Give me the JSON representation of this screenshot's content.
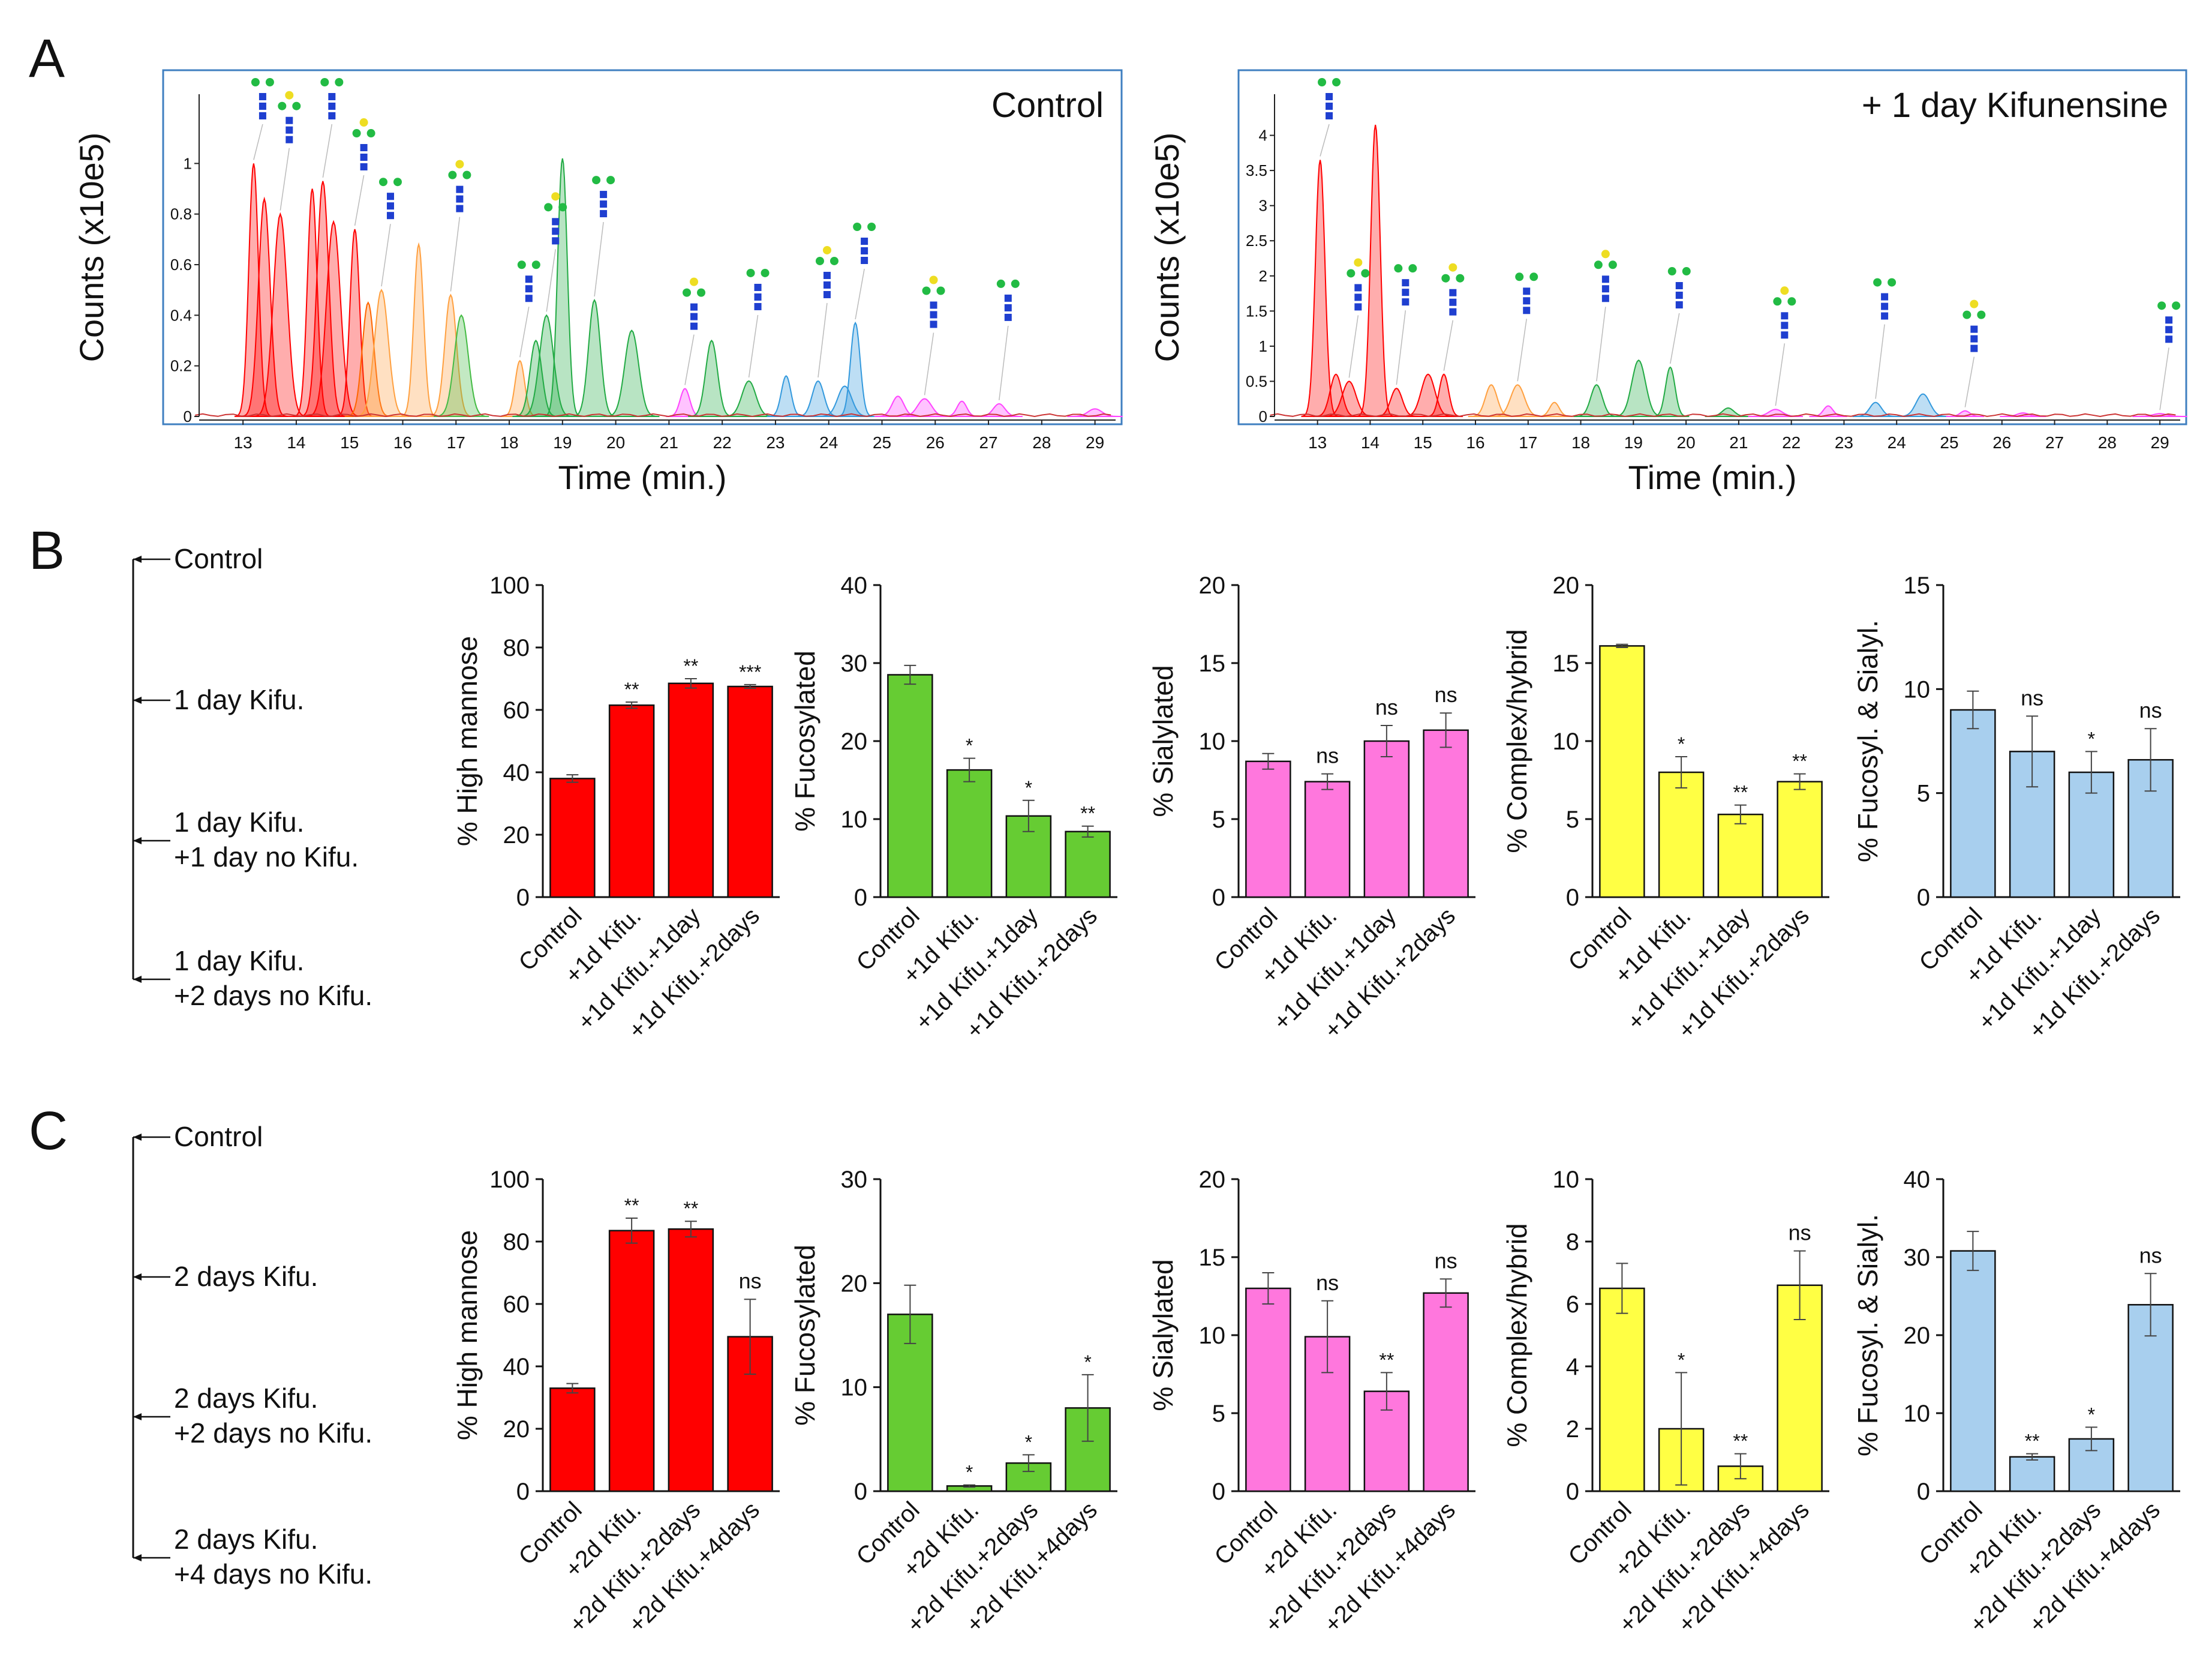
{
  "panel_labels": [
    "A",
    "B",
    "C"
  ],
  "colors": {
    "high_mannose": "#ff0000",
    "fucosylated": "#66cc33",
    "sialylated": "#ff77dd",
    "complex_hybrid": "#ffff44",
    "fucosyl_sialyl": "#a8cfee",
    "chrom_border": "#3f7fc0"
  },
  "timelines": [
    {
      "labels": [
        "Control",
        "1 day Kifu.",
        "1 day Kifu.\n+1 day no Kifu.",
        "1 day Kifu.\n+2 days no Kifu."
      ]
    },
    {
      "labels": [
        "Control",
        "2 days Kifu.",
        "2 days Kifu.\n+2 days no Kifu.",
        "2 days Kifu.\n+4 days no Kifu."
      ]
    }
  ],
  "chart_data": [
    {
      "type": "area",
      "panel": "A",
      "title": "Control",
      "xlabel": "Time (min.)",
      "ylabel": "Counts (x10e5)",
      "xlim": [
        11.5,
        29.5
      ],
      "ylim": [
        0,
        1.25
      ],
      "xticks": [
        13,
        14,
        15,
        16,
        17,
        18,
        19,
        20,
        21,
        22,
        23,
        24,
        25,
        26,
        27,
        28,
        29
      ],
      "yticks": [
        0,
        0.2,
        0.4,
        0.6,
        0.8,
        1
      ],
      "peaks": [
        {
          "x": 13.2,
          "y": 1.0,
          "color": "#ff0000"
        },
        {
          "x": 13.4,
          "y": 0.86,
          "color": "#ff0000"
        },
        {
          "x": 13.7,
          "y": 0.8,
          "color": "#ff0000"
        },
        {
          "x": 14.3,
          "y": 0.9,
          "color": "#ff0000"
        },
        {
          "x": 14.5,
          "y": 0.93,
          "color": "#ff0000"
        },
        {
          "x": 14.7,
          "y": 0.77,
          "color": "#ff0000"
        },
        {
          "x": 15.1,
          "y": 0.74,
          "color": "#ff0000"
        },
        {
          "x": 15.35,
          "y": 0.45,
          "color": "#ff6600"
        },
        {
          "x": 15.6,
          "y": 0.5,
          "color": "#ffa040"
        },
        {
          "x": 16.3,
          "y": 0.68,
          "color": "#ffa040"
        },
        {
          "x": 16.9,
          "y": 0.48,
          "color": "#ffa040"
        },
        {
          "x": 17.1,
          "y": 0.4,
          "color": "#44bb44"
        },
        {
          "x": 18.2,
          "y": 0.22,
          "color": "#ffa040"
        },
        {
          "x": 18.5,
          "y": 0.3,
          "color": "#22aa44"
        },
        {
          "x": 18.7,
          "y": 0.4,
          "color": "#22aa44"
        },
        {
          "x": 19.0,
          "y": 1.02,
          "color": "#22aa44"
        },
        {
          "x": 19.6,
          "y": 0.46,
          "color": "#22aa44"
        },
        {
          "x": 20.3,
          "y": 0.34,
          "color": "#22aa44"
        },
        {
          "x": 21.3,
          "y": 0.11,
          "color": "#ff44ff"
        },
        {
          "x": 21.8,
          "y": 0.3,
          "color": "#22aa44"
        },
        {
          "x": 22.5,
          "y": 0.14,
          "color": "#22aa44"
        },
        {
          "x": 23.2,
          "y": 0.16,
          "color": "#3399dd"
        },
        {
          "x": 23.8,
          "y": 0.14,
          "color": "#3399dd"
        },
        {
          "x": 24.3,
          "y": 0.12,
          "color": "#3399dd"
        },
        {
          "x": 24.5,
          "y": 0.37,
          "color": "#3399dd"
        },
        {
          "x": 25.3,
          "y": 0.08,
          "color": "#ff44ff"
        },
        {
          "x": 25.8,
          "y": 0.07,
          "color": "#ff44ff"
        },
        {
          "x": 26.5,
          "y": 0.06,
          "color": "#ff44ff"
        },
        {
          "x": 27.2,
          "y": 0.05,
          "color": "#ff44ff"
        },
        {
          "x": 29.0,
          "y": 0.03,
          "color": "#ff44ff"
        }
      ]
    },
    {
      "type": "area",
      "panel": "A",
      "title": "+ 1 day Kifunensine",
      "xlabel": "Time (min.)",
      "ylabel": "Counts (x10e5)",
      "xlim": [
        11.5,
        29.5
      ],
      "ylim": [
        0,
        4.5
      ],
      "xticks": [
        13,
        14,
        15,
        16,
        17,
        18,
        19,
        20,
        21,
        22,
        23,
        24,
        25,
        26,
        27,
        28,
        29
      ],
      "yticks": [
        0,
        0.5,
        1,
        1.5,
        2,
        2.5,
        3,
        3.5,
        4
      ],
      "peaks": [
        {
          "x": 13.05,
          "y": 3.65,
          "color": "#ff0000"
        },
        {
          "x": 13.35,
          "y": 0.6,
          "color": "#ff0000"
        },
        {
          "x": 13.6,
          "y": 0.5,
          "color": "#ff0000"
        },
        {
          "x": 14.1,
          "y": 4.15,
          "color": "#ff0000"
        },
        {
          "x": 14.5,
          "y": 0.4,
          "color": "#ff0000"
        },
        {
          "x": 15.1,
          "y": 0.6,
          "color": "#ff0000"
        },
        {
          "x": 15.4,
          "y": 0.6,
          "color": "#ff0000"
        },
        {
          "x": 16.3,
          "y": 0.45,
          "color": "#ffa040"
        },
        {
          "x": 16.8,
          "y": 0.45,
          "color": "#ffa040"
        },
        {
          "x": 17.5,
          "y": 0.2,
          "color": "#ffa040"
        },
        {
          "x": 18.3,
          "y": 0.45,
          "color": "#22aa44"
        },
        {
          "x": 19.1,
          "y": 0.8,
          "color": "#22aa44"
        },
        {
          "x": 19.7,
          "y": 0.7,
          "color": "#22aa44"
        },
        {
          "x": 20.8,
          "y": 0.12,
          "color": "#22aa44"
        },
        {
          "x": 21.7,
          "y": 0.1,
          "color": "#ff44ff"
        },
        {
          "x": 22.7,
          "y": 0.15,
          "color": "#ff44ff"
        },
        {
          "x": 23.6,
          "y": 0.2,
          "color": "#3399dd"
        },
        {
          "x": 24.5,
          "y": 0.32,
          "color": "#3399dd"
        },
        {
          "x": 25.3,
          "y": 0.08,
          "color": "#ff44ff"
        },
        {
          "x": 26.4,
          "y": 0.05,
          "color": "#ff44ff"
        },
        {
          "x": 29.0,
          "y": 0.04,
          "color": "#ff44ff"
        }
      ]
    },
    {
      "type": "bar",
      "panel": "B",
      "ylabel": "% High mannose",
      "ylim": [
        0,
        100
      ],
      "yticks": [
        0,
        20,
        40,
        60,
        80,
        100
      ],
      "color": "#ff0000",
      "categories": [
        "Control",
        "+1d Kifu.",
        "+1d Kifu.+1day",
        "+1d Kifu.+2days"
      ],
      "values": [
        38,
        61.5,
        68.5,
        67.5
      ],
      "errors": [
        1.2,
        1.0,
        1.5,
        0.6
      ],
      "sig": [
        "",
        "**",
        "**",
        "***"
      ]
    },
    {
      "type": "bar",
      "panel": "B",
      "ylabel": "% Fucosylated",
      "ylim": [
        0,
        40
      ],
      "yticks": [
        0,
        10,
        20,
        30,
        40
      ],
      "color": "#66cc33",
      "categories": [
        "Control",
        "+1d Kifu.",
        "+1d Kifu.+1day",
        "+1d Kifu.+2days"
      ],
      "values": [
        28.5,
        16.3,
        10.4,
        8.4
      ],
      "errors": [
        1.2,
        1.5,
        2.0,
        0.7
      ],
      "sig": [
        "",
        "*",
        "*",
        "**"
      ]
    },
    {
      "type": "bar",
      "panel": "B",
      "ylabel": "% Sialylated",
      "ylim": [
        0,
        20
      ],
      "yticks": [
        0,
        5,
        10,
        15,
        20
      ],
      "color": "#ff77dd",
      "categories": [
        "Control",
        "+1d Kifu.",
        "+1d Kifu.+1day",
        "+1d Kifu.+2days"
      ],
      "values": [
        8.7,
        7.4,
        10.0,
        10.7
      ],
      "errors": [
        0.5,
        0.5,
        1.0,
        1.1
      ],
      "sig": [
        "",
        "ns",
        "ns",
        "ns"
      ]
    },
    {
      "type": "bar",
      "panel": "B",
      "ylabel": "% Complex/hybrid",
      "ylim": [
        0,
        20
      ],
      "yticks": [
        0,
        5,
        10,
        15,
        20
      ],
      "color": "#ffff44",
      "categories": [
        "Control",
        "+1d Kifu.",
        "+1d Kifu.+1day",
        "+1d Kifu.+2days"
      ],
      "values": [
        16.1,
        8.0,
        5.3,
        7.4
      ],
      "errors": [
        0.1,
        1.0,
        0.6,
        0.5
      ],
      "sig": [
        "",
        "*",
        "**",
        "**"
      ]
    },
    {
      "type": "bar",
      "panel": "B",
      "ylabel": "% Fucosyl. & Sialyl.",
      "ylim": [
        0,
        15
      ],
      "yticks": [
        0,
        5,
        10,
        15
      ],
      "color": "#a8cfee",
      "categories": [
        "Control",
        "+1d Kifu.",
        "+1d Kifu.+1day",
        "+1d Kifu.+2days"
      ],
      "values": [
        9.0,
        7.0,
        6.0,
        6.6
      ],
      "errors": [
        0.9,
        1.7,
        1.0,
        1.5
      ],
      "sig": [
        "",
        "ns",
        "*",
        "ns"
      ]
    },
    {
      "type": "bar",
      "panel": "C",
      "ylabel": "% High mannose",
      "ylim": [
        0,
        100
      ],
      "yticks": [
        0,
        20,
        40,
        60,
        80,
        100
      ],
      "color": "#ff0000",
      "categories": [
        "Control",
        "+2d Kifu.",
        "+2d Kifu.+2days",
        "+2d Kifu.+4days"
      ],
      "values": [
        33,
        83.5,
        84,
        49.5
      ],
      "errors": [
        1.5,
        4.0,
        2.5,
        12
      ],
      "sig": [
        "",
        "**",
        "**",
        "ns"
      ]
    },
    {
      "type": "bar",
      "panel": "C",
      "ylabel": "% Fucosylated",
      "ylim": [
        0,
        30
      ],
      "yticks": [
        0,
        10,
        20,
        30
      ],
      "color": "#66cc33",
      "categories": [
        "Control",
        "+2d Kifu.",
        "+2d Kifu.+2days",
        "+2d Kifu.+4days"
      ],
      "values": [
        17.0,
        0.5,
        2.7,
        8.0
      ],
      "errors": [
        2.8,
        0.1,
        0.8,
        3.2
      ],
      "sig": [
        "",
        "*",
        "*",
        "*"
      ]
    },
    {
      "type": "bar",
      "panel": "C",
      "ylabel": "% Sialylated",
      "ylim": [
        0,
        20
      ],
      "yticks": [
        0,
        5,
        10,
        15,
        20
      ],
      "color": "#ff77dd",
      "categories": [
        "Control",
        "+2d Kifu.",
        "+2d Kifu.+2days",
        "+2d Kifu.+4days"
      ],
      "values": [
        13.0,
        9.9,
        6.4,
        12.7
      ],
      "errors": [
        1.0,
        2.3,
        1.2,
        0.9
      ],
      "sig": [
        "",
        "ns",
        "**",
        "ns"
      ]
    },
    {
      "type": "bar",
      "panel": "C",
      "ylabel": "% Complex/hybrid",
      "ylim": [
        0,
        10
      ],
      "yticks": [
        0,
        2,
        4,
        6,
        8,
        10
      ],
      "color": "#ffff44",
      "categories": [
        "Control",
        "+2d Kifu.",
        "+2d Kifu.+2days",
        "+2d Kifu.+4days"
      ],
      "values": [
        6.5,
        2.0,
        0.8,
        6.6
      ],
      "errors": [
        0.8,
        1.8,
        0.4,
        1.1
      ],
      "sig": [
        "",
        "*",
        "**",
        "ns"
      ]
    },
    {
      "type": "bar",
      "panel": "C",
      "ylabel": "% Fucosyl. & Sialyl.",
      "ylim": [
        0,
        40
      ],
      "yticks": [
        0,
        10,
        20,
        30,
        40
      ],
      "color": "#a8cfee",
      "categories": [
        "Control",
        "+2d Kifu.",
        "+2d Kifu.+2days",
        "+2d Kifu.+4days"
      ],
      "values": [
        30.8,
        4.4,
        6.7,
        23.9
      ],
      "errors": [
        2.5,
        0.4,
        1.5,
        4.0
      ],
      "sig": [
        "",
        "**",
        "*",
        "ns"
      ]
    }
  ]
}
